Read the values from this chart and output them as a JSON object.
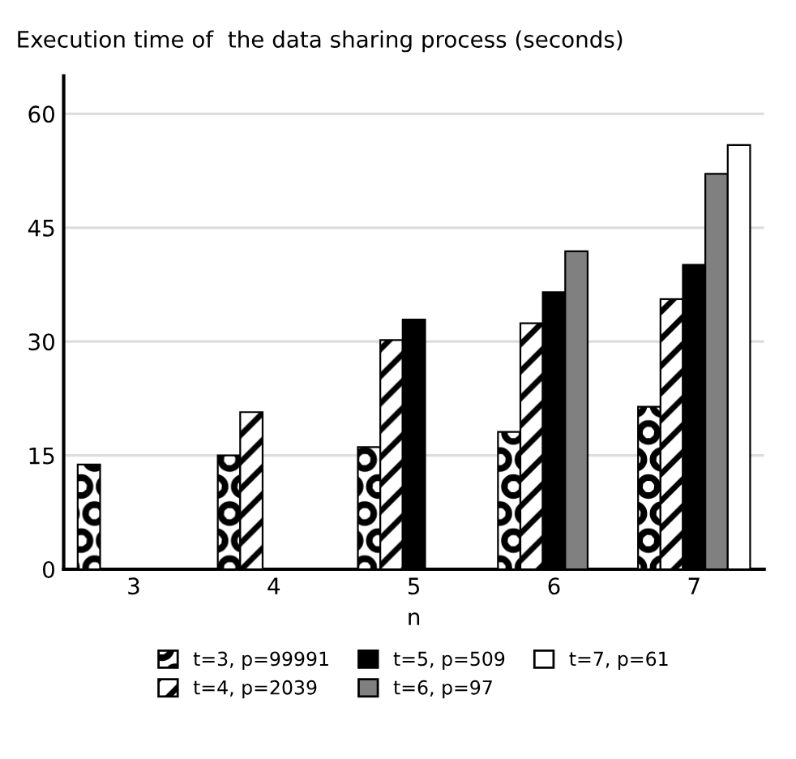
{
  "chart_data": {
    "type": "bar",
    "title": "Execution time of  the data sharing process (seconds)",
    "xlabel": "n",
    "categories": [
      "3",
      "4",
      "5",
      "6",
      "7"
    ],
    "series": [
      {
        "name": "t=3, p=99991",
        "color": "#000000",
        "values": [
          13.8,
          15.0,
          16.1,
          18.1,
          21.4
        ]
      },
      {
        "name": "t=4, p=2039",
        "color": "#000000",
        "values": [
          null,
          20.7,
          30.2,
          32.4,
          35.6
        ]
      },
      {
        "name": "t=5, p=509",
        "color": "#000000",
        "values": [
          null,
          null,
          32.9,
          36.5,
          40.1
        ]
      },
      {
        "name": "t=6, p=97",
        "color": "#808080",
        "values": [
          null,
          null,
          null,
          41.9,
          52.1
        ]
      },
      {
        "name": "t=7, p=61",
        "color": "#ffffff",
        "values": [
          null,
          null,
          null,
          null,
          55.9
        ]
      }
    ],
    "ylim": [
      0,
      65
    ],
    "yticks": [
      0,
      15,
      30,
      45,
      60
    ],
    "grid": "y",
    "legend": "bottom"
  }
}
